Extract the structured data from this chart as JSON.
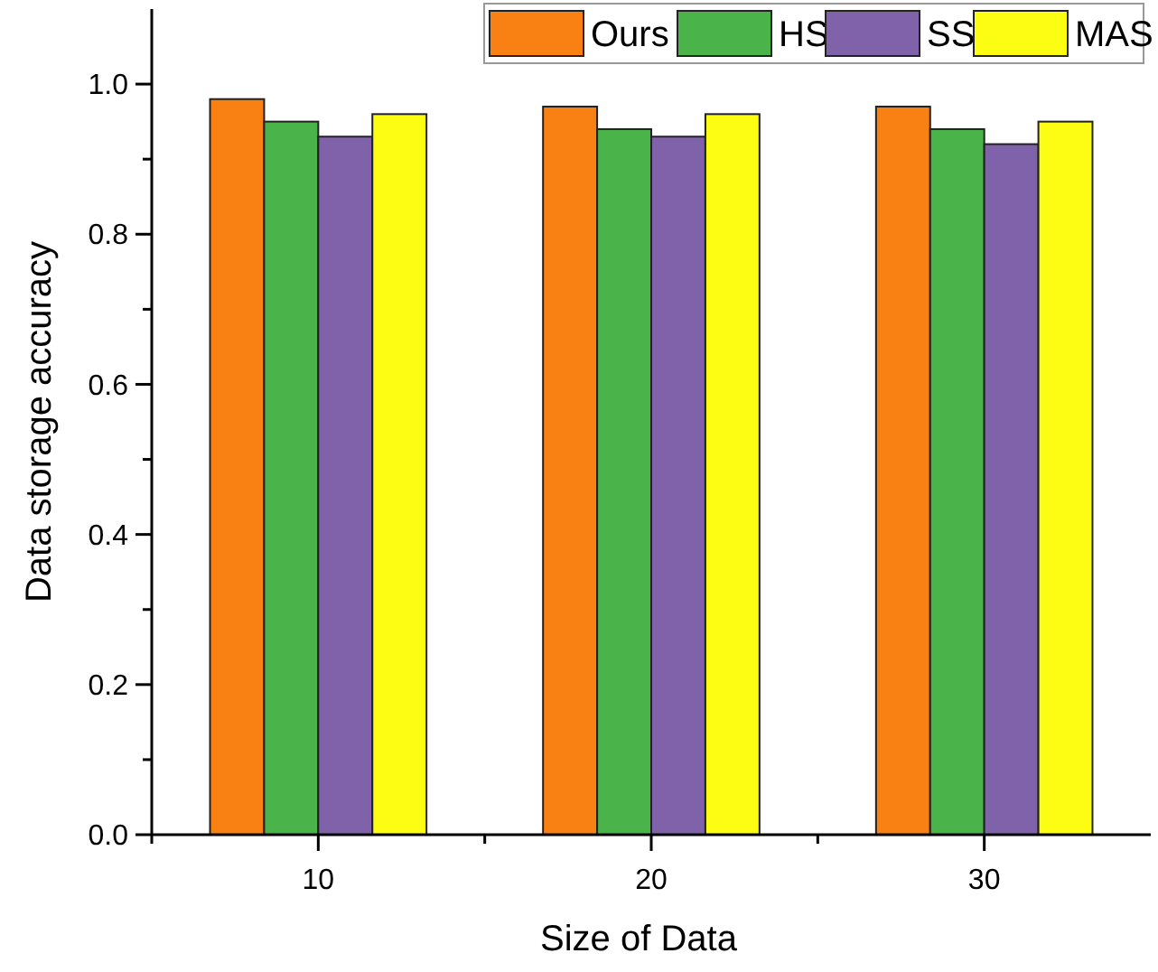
{
  "chart_data": {
    "type": "bar",
    "xlabel": "Size of Data",
    "ylabel": "Data storage accuracy",
    "categories": [
      "10",
      "20",
      "30"
    ],
    "series": [
      {
        "name": "Ours",
        "color": "#f98012",
        "values": [
          0.98,
          0.97,
          0.97
        ]
      },
      {
        "name": "HS",
        "color": "#4ab34a",
        "values": [
          0.95,
          0.94,
          0.94
        ]
      },
      {
        "name": "SS",
        "color": "#8062aa",
        "values": [
          0.93,
          0.93,
          0.92
        ]
      },
      {
        "name": "MAS",
        "color": "#fdfd14",
        "values": [
          0.96,
          0.96,
          0.95
        ]
      }
    ],
    "ylim": [
      0,
      1.1
    ],
    "yticks": [
      {
        "value": 0,
        "label": "0.0"
      },
      {
        "value": 0.1,
        "label": null
      },
      {
        "value": 0.2,
        "label": "0.2"
      },
      {
        "value": 0.3,
        "label": null
      },
      {
        "value": 0.4,
        "label": "0.4"
      },
      {
        "value": 0.5,
        "label": null
      },
      {
        "value": 0.6,
        "label": "0.6"
      },
      {
        "value": 0.7,
        "label": null
      },
      {
        "value": 0.8,
        "label": "0.8"
      },
      {
        "value": 0.9,
        "label": null
      },
      {
        "value": 1,
        "label": "1.0"
      }
    ],
    "legend": "top right",
    "grid": false
  }
}
